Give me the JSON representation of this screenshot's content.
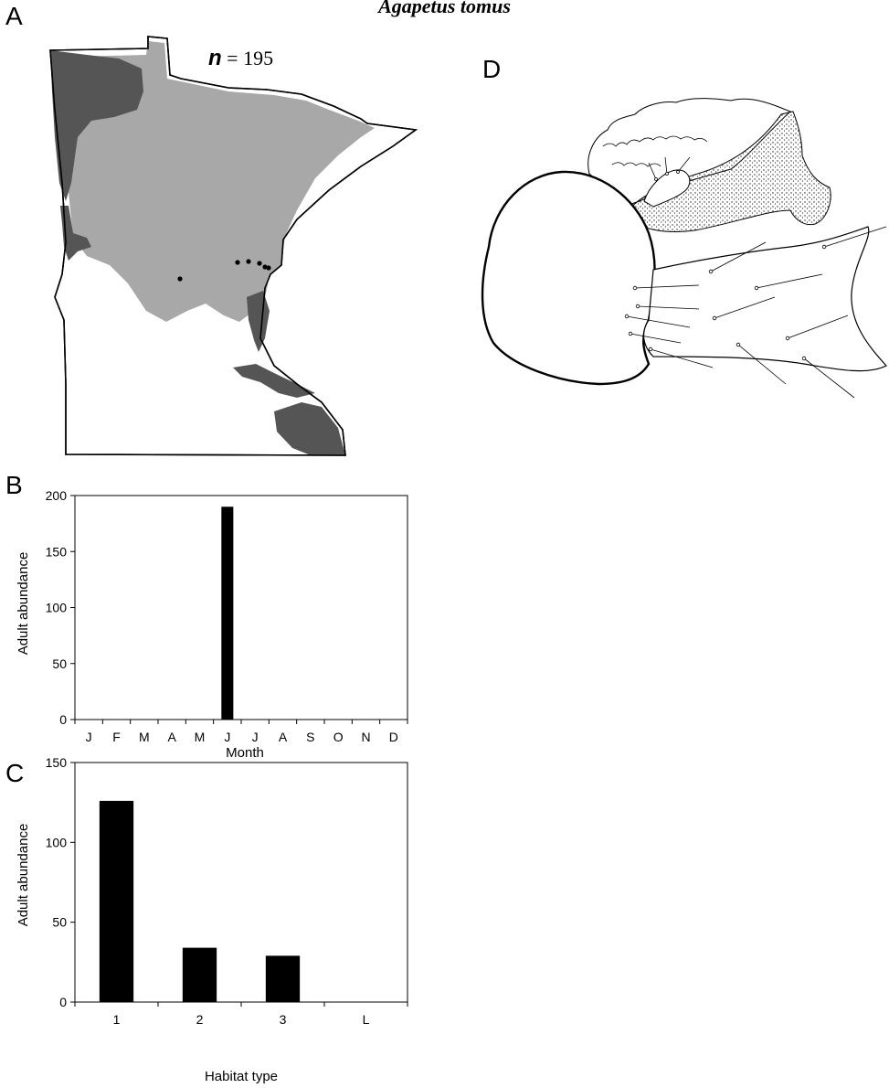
{
  "figure": {
    "title": "Agapetus tomus",
    "panel_labels": {
      "a": "A",
      "b": "B",
      "c": "C",
      "d": "D"
    }
  },
  "map": {
    "n_label": "n",
    "n_equals": " = 195",
    "colors": {
      "dark": "#555555",
      "light": "#a8a8a8",
      "background": "#ffffff",
      "outline": "#000000"
    }
  },
  "chart_data": [
    {
      "type": "bar",
      "panel": "B",
      "categories": [
        "J",
        "F",
        "M",
        "A",
        "M",
        "J",
        "J",
        "A",
        "S",
        "O",
        "N",
        "D"
      ],
      "values": [
        0,
        0,
        0,
        0,
        0,
        190,
        0,
        0,
        0,
        0,
        0,
        0
      ],
      "xlabel": "Month",
      "ylabel": "Adult abundance",
      "ylim": [
        0,
        200
      ],
      "yticks": [
        0,
        50,
        100,
        150,
        200
      ],
      "grid": false,
      "bar_color": "#000000"
    },
    {
      "type": "bar",
      "panel": "C",
      "categories": [
        "1",
        "2",
        "3",
        "L"
      ],
      "values": [
        126,
        34,
        29,
        0
      ],
      "xlabel": "Habitat type",
      "ylabel": "Adult abundance",
      "ylim": [
        0,
        150
      ],
      "yticks": [
        0,
        50,
        100,
        150
      ],
      "grid": false,
      "bar_color": "#000000"
    }
  ]
}
